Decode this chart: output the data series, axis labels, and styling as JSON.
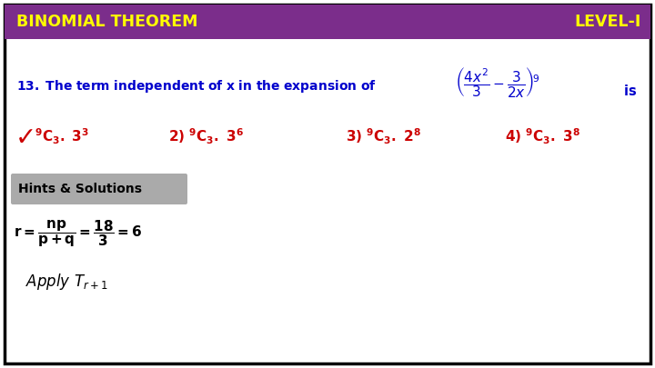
{
  "bg_color": "#ffffff",
  "border_color": "#000000",
  "header_bg": "#7b2d8b",
  "header_text_color": "#ffff00",
  "header_left": "BINOMIAL THEOREM",
  "header_right": "LEVEL-I",
  "question_color": "#0000cc",
  "answer_color": "#cc0000",
  "hints_bg": "#aaaaaa",
  "hints_text": "Hints & Solutions",
  "hints_text_color": "#000000",
  "formula_color": "#000000"
}
